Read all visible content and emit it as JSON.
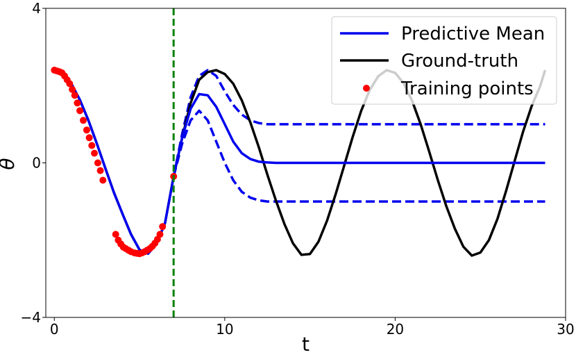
{
  "chart_data": {
    "type": "line",
    "title": "",
    "xlabel": "t",
    "ylabel": "θ",
    "xlim": [
      -0.5,
      30
    ],
    "ylim": [
      -4,
      4
    ],
    "xticks": [
      0,
      10,
      20,
      30
    ],
    "xtick_labels": [
      "0",
      "10",
      "20",
      "30"
    ],
    "yticks": [
      -4,
      0,
      4
    ],
    "ytick_labels": [
      "−4",
      "0",
      "4"
    ],
    "grid": false,
    "legend": {
      "placement": "top-right",
      "entries": [
        "Predictive Mean",
        "Ground-truth",
        "Training points"
      ]
    },
    "vline": {
      "x": 7.0,
      "color": "#008000",
      "style": "dashed"
    },
    "colors": {
      "predictive_mean": "#0000ee",
      "ground_truth": "#000000",
      "training_points": "#ff0000",
      "vline": "#008000"
    },
    "series": [
      {
        "name": "Ground-truth",
        "style": "solid",
        "x": [
          0,
          0.5,
          1,
          1.5,
          2,
          2.5,
          3,
          3.5,
          4,
          4.5,
          5,
          5.5,
          6,
          6.5,
          7,
          7.5,
          8,
          8.5,
          9,
          9.5,
          10,
          10.5,
          11,
          11.5,
          12,
          12.5,
          13,
          13.5,
          14,
          14.5,
          15,
          15.5,
          16,
          16.5,
          17,
          17.5,
          18,
          18.5,
          19,
          19.5,
          20,
          20.5,
          21,
          21.5,
          22,
          22.5,
          23,
          23.5,
          24,
          24.5,
          25,
          25.5,
          26,
          26.5,
          27,
          27.5,
          28,
          28.5,
          28.8
        ],
        "y": [
          2.4,
          2.31,
          2.05,
          1.63,
          1.1,
          0.49,
          -0.15,
          -0.77,
          -1.32,
          -1.85,
          -2.25,
          -2.35,
          -2.1,
          -1.55,
          -0.35,
          0.65,
          1.55,
          2.15,
          2.35,
          2.4,
          2.3,
          2.05,
          1.62,
          1.05,
          0.4,
          -0.3,
          -0.97,
          -1.58,
          -2.08,
          -2.38,
          -2.36,
          -2.04,
          -1.5,
          -0.82,
          -0.08,
          0.66,
          1.34,
          1.88,
          2.24,
          2.4,
          2.33,
          2.06,
          1.6,
          0.99,
          0.29,
          -0.44,
          -1.12,
          -1.7,
          -2.17,
          -2.4,
          -2.32,
          -2.0,
          -1.45,
          -0.74,
          0.03,
          0.8,
          1.46,
          1.98,
          2.4
        ]
      },
      {
        "name": "Predictive Mean",
        "style": "solid",
        "x": [
          0,
          0.5,
          1,
          1.5,
          2,
          2.5,
          3,
          3.5,
          4,
          4.5,
          5,
          5.5,
          6,
          6.5,
          7,
          7.5,
          8,
          8.5,
          9,
          9.5,
          10,
          10.5,
          11,
          11.5,
          12,
          12.5,
          13,
          14,
          15,
          16,
          18,
          20,
          22,
          24,
          26,
          28.8
        ],
        "y": [
          2.4,
          2.31,
          2.05,
          1.63,
          1.1,
          0.49,
          -0.15,
          -0.77,
          -1.32,
          -1.85,
          -2.25,
          -2.35,
          -2.1,
          -1.55,
          -0.35,
          0.65,
          1.4,
          1.78,
          1.75,
          1.45,
          1.0,
          0.55,
          0.25,
          0.1,
          0.03,
          0.01,
          0.0,
          0.0,
          0.0,
          0.0,
          0.0,
          0.0,
          0.0,
          0.0,
          0.0,
          0.0
        ]
      },
      {
        "name": "Upper bound",
        "style": "dashed",
        "x": [
          7,
          7.5,
          8,
          8.5,
          9,
          9.5,
          10,
          10.5,
          11,
          11.5,
          12,
          12.5,
          13,
          14,
          16,
          20,
          24,
          28.8
        ],
        "y": [
          -0.35,
          0.75,
          1.7,
          2.25,
          2.4,
          2.25,
          1.85,
          1.5,
          1.25,
          1.1,
          1.03,
          1.0,
          1.0,
          1.0,
          1.0,
          1.0,
          1.0,
          1.0
        ]
      },
      {
        "name": "Lower bound",
        "style": "dashed",
        "x": [
          7,
          7.5,
          8,
          8.5,
          9,
          9.5,
          10,
          10.5,
          11,
          11.5,
          12,
          12.5,
          13,
          14,
          16,
          20,
          24,
          28.8
        ],
        "y": [
          -0.35,
          0.5,
          1.1,
          1.35,
          1.1,
          0.55,
          0.0,
          -0.45,
          -0.75,
          -0.9,
          -0.97,
          -1.0,
          -1.0,
          -1.0,
          -1.0,
          -1.0,
          -1.0,
          -1.0
        ]
      },
      {
        "name": "Training points",
        "style": "scatter",
        "x": [
          0.0,
          0.15,
          0.3,
          0.45,
          0.6,
          0.75,
          0.9,
          1.05,
          1.2,
          1.35,
          1.5,
          1.7,
          1.9,
          2.05,
          2.2,
          2.35,
          2.55,
          2.7,
          2.85,
          3.6,
          3.75,
          3.9,
          4.05,
          4.2,
          4.35,
          4.5,
          4.7,
          4.85,
          5.0,
          5.15,
          5.3,
          5.45,
          5.6,
          5.75,
          5.9,
          6.05,
          6.2,
          6.35,
          7.0
        ],
        "y": [
          2.4,
          2.38,
          2.36,
          2.33,
          2.25,
          2.15,
          2.05,
          1.9,
          1.75,
          1.55,
          1.35,
          1.1,
          0.85,
          0.65,
          0.45,
          0.25,
          0.0,
          -0.2,
          -0.45,
          -1.85,
          -2.0,
          -2.1,
          -2.18,
          -2.22,
          -2.26,
          -2.3,
          -2.33,
          -2.34,
          -2.35,
          -2.33,
          -2.3,
          -2.26,
          -2.22,
          -2.16,
          -2.08,
          -1.98,
          -1.85,
          -1.65,
          -0.35
        ]
      }
    ]
  }
}
